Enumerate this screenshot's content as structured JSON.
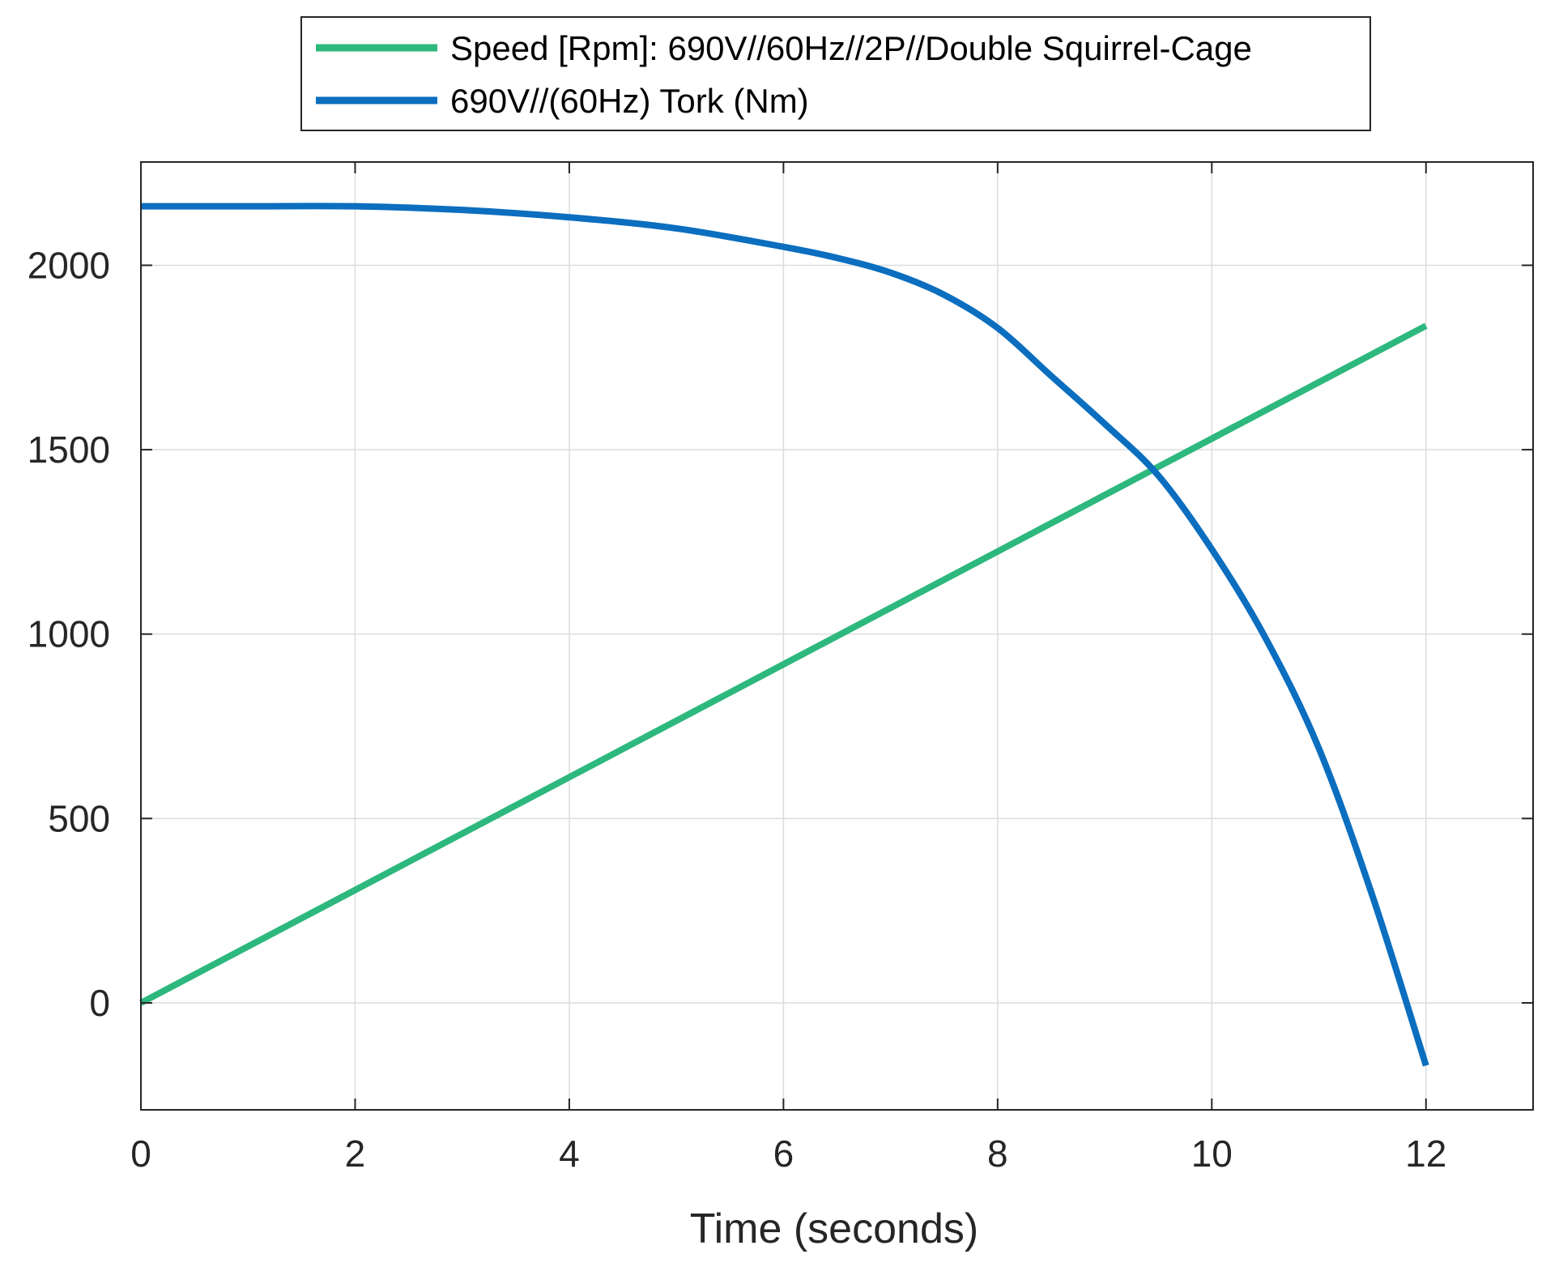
{
  "chart_data": {
    "type": "line",
    "title": "",
    "xlabel": "Time (seconds)",
    "ylabel": "",
    "xlim": [
      0,
      13
    ],
    "ylim": [
      -290,
      2280
    ],
    "x_ticks": [
      0,
      2,
      4,
      6,
      8,
      10,
      12
    ],
    "y_ticks": [
      0,
      500,
      1000,
      1500,
      2000
    ],
    "x_tick_labels": [
      "0",
      "2",
      "4",
      "6",
      "8",
      "10",
      "12"
    ],
    "y_tick_labels": [
      "0",
      "500",
      "1000",
      "1500",
      "2000"
    ],
    "grid": true,
    "legend_position": "top-center, outside",
    "series": [
      {
        "name": "Speed [Rpm]: 690V//60Hz//2P//Double Squirrel-Cage",
        "color": "#2db87d",
        "x": [
          0,
          1,
          2,
          3,
          4,
          5,
          6,
          7,
          8,
          9,
          10,
          11,
          12
        ],
        "y": [
          0,
          153,
          306,
          459,
          612,
          765,
          918,
          1071,
          1224,
          1377,
          1530,
          1683,
          1836
        ]
      },
      {
        "name": "690V//(60Hz) Tork (Nm)",
        "color": "#0b6ebf",
        "x": [
          0,
          1,
          2,
          3,
          4,
          5,
          6,
          6.5,
          7,
          7.5,
          8,
          8.5,
          9,
          9.5,
          10,
          10.5,
          11,
          11.5,
          12
        ],
        "y": [
          2160,
          2160,
          2160,
          2150,
          2130,
          2100,
          2050,
          2020,
          1980,
          1920,
          1830,
          1700,
          1570,
          1430,
          1230,
          990,
          690,
          290,
          -170
        ]
      }
    ]
  }
}
